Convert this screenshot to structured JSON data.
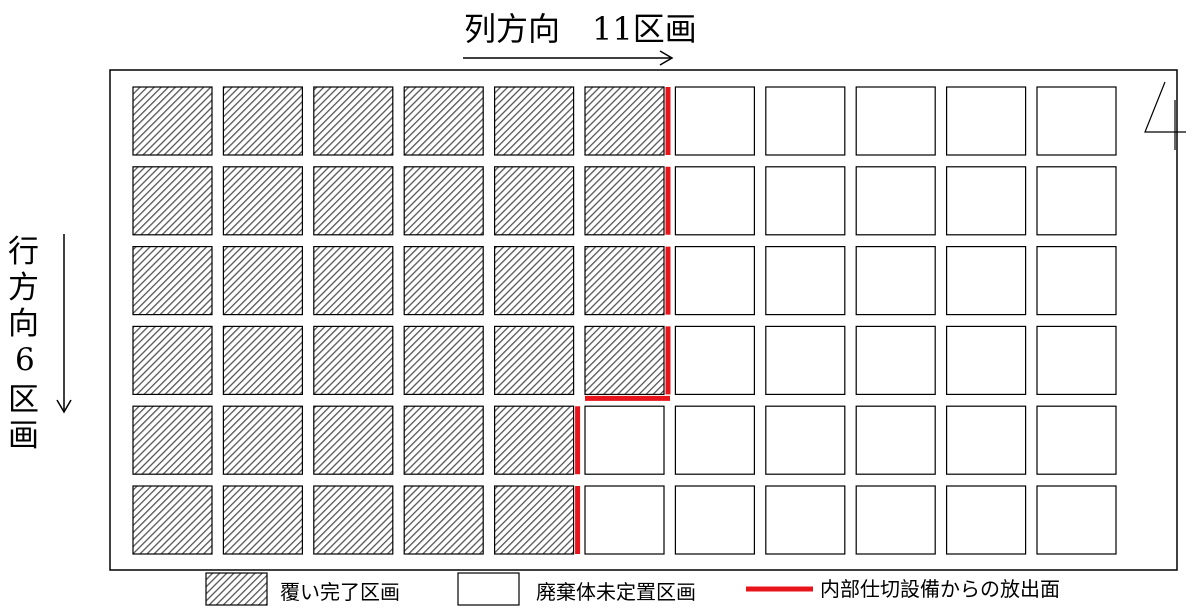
{
  "header": {
    "column_label": "列方向　11区画"
  },
  "side": {
    "row_label_chars": [
      "行",
      "方",
      "向",
      "6",
      "区",
      "画"
    ],
    "corner_mark": "4"
  },
  "grid": {
    "rows": 6,
    "cols": 11,
    "covered_per_row": [
      6,
      6,
      6,
      6,
      5,
      5
    ]
  },
  "legend": {
    "covered_label": "覆い完了区画",
    "empty_label": "廃棄体未定置区画",
    "emission_label": "内部仕切設備からの放出面"
  },
  "colors": {
    "emission": "#e8141b",
    "line": "#000000",
    "hatch": "#555555"
  }
}
